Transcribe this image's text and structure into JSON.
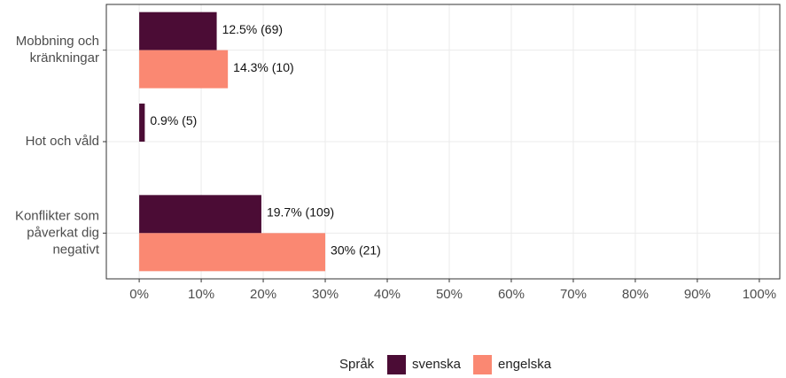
{
  "chart_data": {
    "type": "bar",
    "orientation": "horizontal",
    "categories": [
      [
        "Mobbning och",
        "kränkningar"
      ],
      [
        "Hot och våld"
      ],
      [
        "Konflikter som",
        "påverkat dig",
        "negativt"
      ]
    ],
    "series": [
      {
        "name": "svenska",
        "color": "#4b0c35",
        "values": [
          12.5,
          0.9,
          19.7
        ],
        "value_labels": [
          "12.5% (69)",
          "0.9% (5)",
          "19.7% (109)"
        ]
      },
      {
        "name": "engelska",
        "color": "#fa8872",
        "values": [
          14.3,
          null,
          30
        ],
        "value_labels": [
          "14.3% (10)",
          null,
          "30% (21)"
        ]
      }
    ],
    "xlim": [
      -5.3,
      103.3
    ],
    "xticks": [
      {
        "value": 0,
        "label": "0%"
      },
      {
        "value": 10,
        "label": "10%"
      },
      {
        "value": 20,
        "label": "20%"
      },
      {
        "value": 30,
        "label": "30%"
      },
      {
        "value": 40,
        "label": "40%"
      },
      {
        "value": 50,
        "label": "50%"
      },
      {
        "value": 60,
        "label": "60%"
      },
      {
        "value": 70,
        "label": "70%"
      },
      {
        "value": 80,
        "label": "80%"
      },
      {
        "value": 90,
        "label": "90%"
      },
      {
        "value": 100,
        "label": "100%"
      }
    ],
    "grid": true,
    "legend": {
      "title": "Språk",
      "position": "bottom"
    }
  }
}
